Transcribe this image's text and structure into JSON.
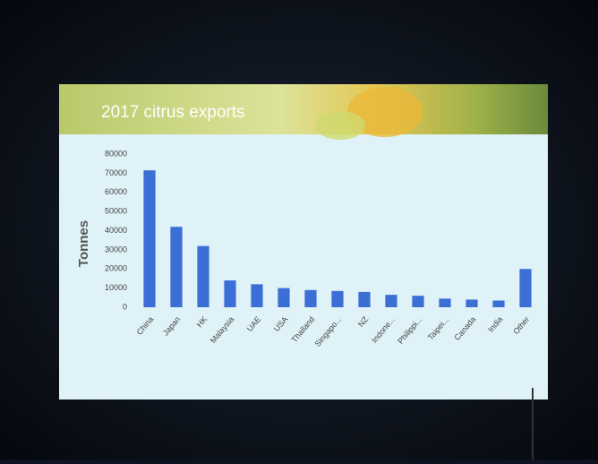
{
  "chart_data": {
    "type": "bar",
    "title": "2017 citrus exports",
    "y_label": "Tonnes",
    "categories": [
      "China",
      "Japan",
      "HK",
      "Malaysia",
      "UAE",
      "USA",
      "Thailand",
      "Singapo...",
      "NZ",
      "Indone...",
      "Philippi...",
      "Taipei...",
      "Canada",
      "India",
      "Other"
    ],
    "values": [
      71500,
      42000,
      32000,
      14000,
      12000,
      10000,
      9000,
      8500,
      8000,
      6500,
      6000,
      4500,
      4000,
      3500,
      20000
    ],
    "color": "#3b6fd6",
    "ylim": [
      0,
      80000
    ],
    "yticks": [
      0,
      10000,
      20000,
      30000,
      40000,
      50000,
      60000,
      70000,
      80000
    ],
    "grid": false
  }
}
